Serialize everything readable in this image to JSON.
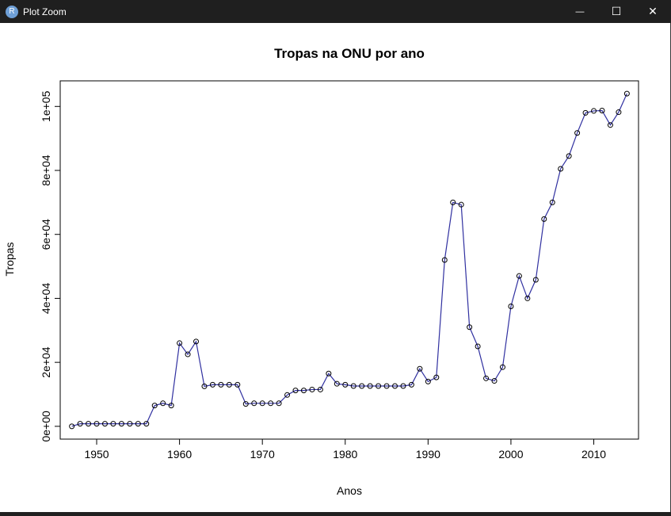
{
  "window": {
    "title": "Plot Zoom",
    "icon_letter": "R",
    "minimize_glyph": "—",
    "maximize_glyph": "☐",
    "close_glyph": "✕"
  },
  "chart_data": {
    "type": "line",
    "title": "Tropas na ONU por ano",
    "xlabel": "Anos",
    "ylabel": "Tropas",
    "xlim": [
      1945.6,
      2015.4
    ],
    "ylim": [
      -4000,
      108000
    ],
    "x_ticks": [
      1950,
      1960,
      1970,
      1980,
      1990,
      2000,
      2010
    ],
    "x_tick_labels": [
      "1950",
      "1960",
      "1970",
      "1980",
      "1990",
      "2000",
      "2010"
    ],
    "y_ticks": [
      0,
      20000,
      40000,
      60000,
      80000,
      100000
    ],
    "y_tick_labels": [
      "0e+00",
      "2e+04",
      "4e+04",
      "6e+04",
      "8e+04",
      "1e+05"
    ],
    "grid": false,
    "markers": "open-circle",
    "line_color": "#3030a0",
    "series": [
      {
        "x": [
          1947,
          1948,
          1949,
          1950,
          1951,
          1952,
          1953,
          1954,
          1955,
          1956,
          1957,
          1958,
          1959,
          1960,
          1961,
          1962,
          1963,
          1964,
          1965,
          1966,
          1967,
          1968,
          1969,
          1970,
          1971,
          1972,
          1973,
          1974,
          1975,
          1976,
          1977,
          1978,
          1979,
          1980,
          1981,
          1982,
          1983,
          1984,
          1985,
          1986,
          1987,
          1988,
          1989,
          1990,
          1991,
          1992,
          1993,
          1994,
          1995,
          1996,
          1997,
          1998,
          1999,
          2000,
          2001,
          2002,
          2003,
          2004,
          2005,
          2006,
          2007,
          2008,
          2009,
          2010,
          2011,
          2012,
          2013,
          2014
        ],
        "y": [
          0,
          800,
          800,
          800,
          800,
          800,
          800,
          800,
          800,
          800,
          6500,
          7200,
          6500,
          26000,
          22500,
          26500,
          12500,
          13000,
          13000,
          13000,
          13000,
          7000,
          7200,
          7200,
          7200,
          7200,
          9800,
          11200,
          11200,
          11500,
          11500,
          16500,
          13300,
          13000,
          12600,
          12600,
          12600,
          12600,
          12600,
          12600,
          12600,
          13000,
          18000,
          14000,
          15300,
          52000,
          70000,
          69300,
          31000,
          25000,
          15000,
          14200,
          18500,
          37500,
          47000,
          40000,
          45800,
          64800,
          70000,
          80500,
          84500,
          91700,
          98000,
          98600,
          98700,
          94200,
          98200,
          104000
        ]
      }
    ]
  }
}
